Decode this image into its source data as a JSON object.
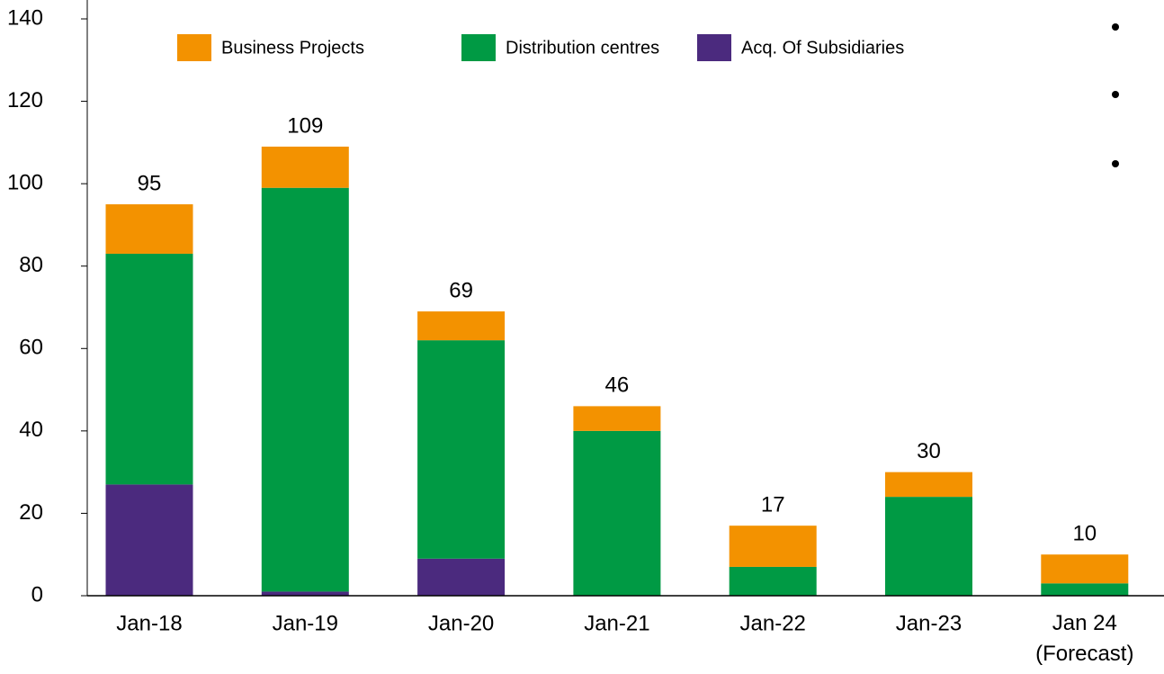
{
  "chart_data": {
    "type": "stacked_bar",
    "categories": [
      "Jan-18",
      "Jan-19",
      "Jan-20",
      "Jan-21",
      "Jan-22",
      "Jan-23",
      "Jan 24\n(Forecast)"
    ],
    "series": [
      {
        "name": "Acq. Of Subsidiaries",
        "color": "#4b2a7e",
        "values": [
          27,
          1,
          9,
          0,
          0,
          0,
          0
        ]
      },
      {
        "name": "Distribution centres",
        "color": "#009a44",
        "values": [
          56,
          98,
          53,
          40,
          7,
          24,
          3
        ]
      },
      {
        "name": "Business Projects",
        "color": "#f39200",
        "values": [
          12,
          10,
          7,
          6,
          10,
          6,
          7
        ]
      }
    ],
    "totals": [
      95,
      109,
      69,
      46,
      17,
      30,
      10
    ],
    "ylim": [
      0,
      140
    ],
    "yticks": [
      0,
      20,
      40,
      60,
      80,
      100,
      120,
      140
    ],
    "grid": false
  }
}
